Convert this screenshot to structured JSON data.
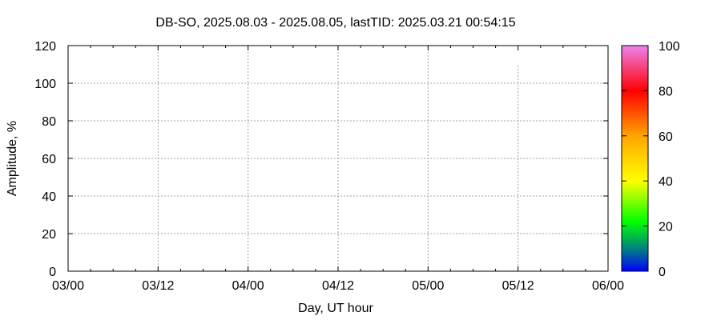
{
  "chart_data": {
    "type": "scatter",
    "title": "DB-SO, 2025.08.03 - 2025.08.05, lastTID: 2025.03.21 00:54:15",
    "xlabel": "Day, UT hour",
    "ylabel": "Amplitude, %",
    "xlim_hours": [
      0,
      72
    ],
    "x_tick_labels": [
      "03/00",
      "03/12",
      "04/00",
      "04/12",
      "05/00",
      "05/12",
      "06/00"
    ],
    "ylim": [
      0,
      120
    ],
    "y_ticks": [
      0,
      20,
      40,
      60,
      80,
      100,
      120
    ],
    "grid": true,
    "series": [],
    "colorbar": {
      "range": [
        0,
        100
      ],
      "ticks": [
        0,
        20,
        40,
        60,
        80,
        100
      ],
      "colors": [
        "#0000ff",
        "#008080",
        "#00ff00",
        "#ffff00",
        "#ffa500",
        "#ff0000",
        "#ee82ee"
      ]
    }
  }
}
